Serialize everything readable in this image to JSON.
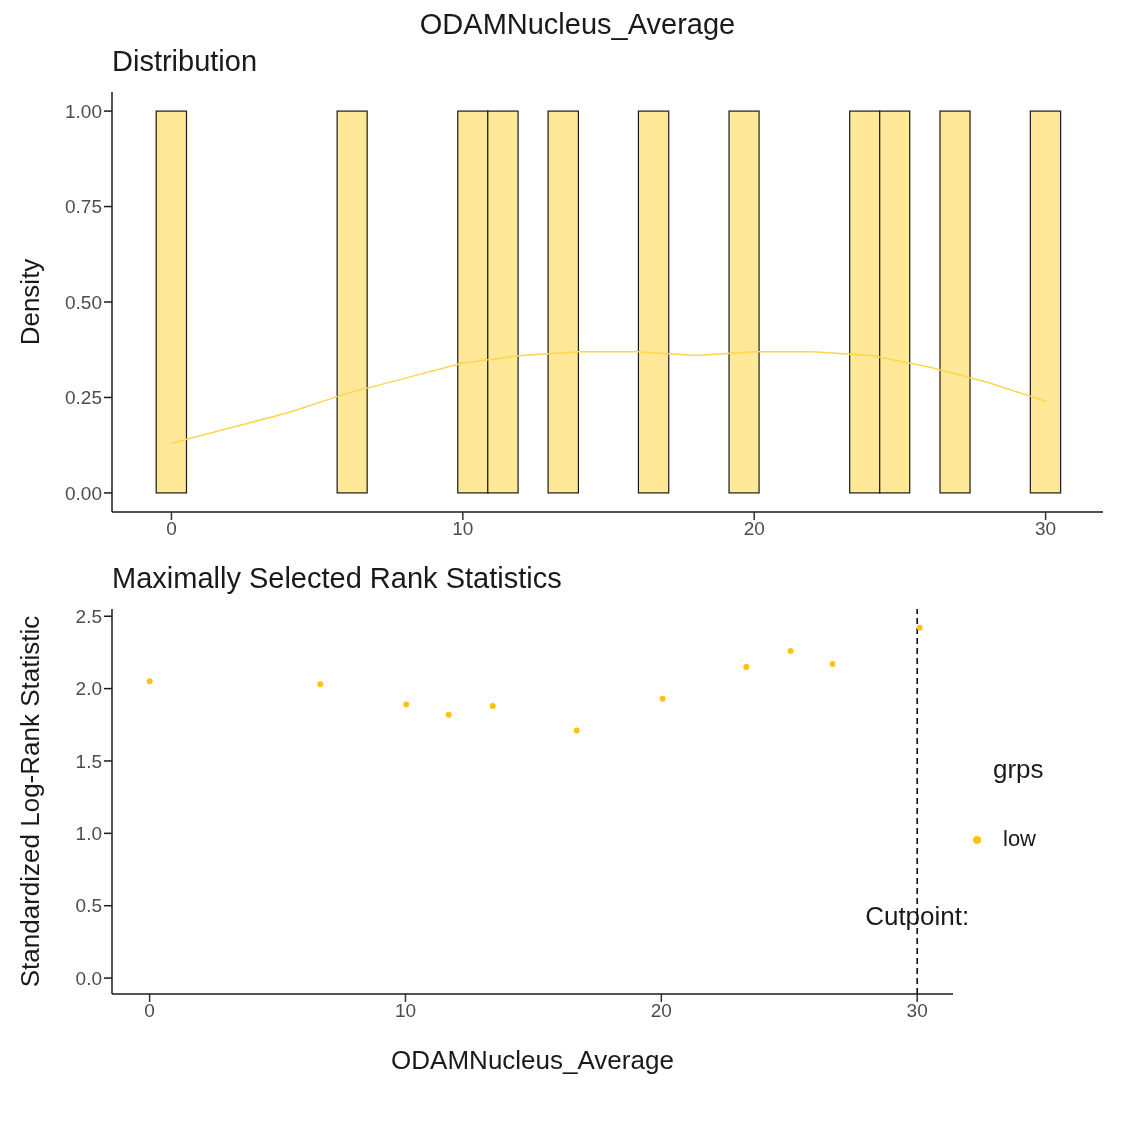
{
  "chart_data": [
    {
      "type": "histogram",
      "title": "ODAMNucleus_Average",
      "subtitle": "Distribution",
      "ylabel": "Density",
      "bins": [
        -0.52,
        0.52,
        1.55,
        2.59,
        3.62,
        4.66,
        5.69,
        6.72,
        7.76,
        8.79,
        9.83,
        10.86,
        11.9,
        12.93,
        13.97,
        15.0,
        16.03,
        17.07,
        18.1,
        19.14,
        20.17,
        21.21,
        22.24,
        23.28,
        24.31,
        25.34,
        26.38,
        27.41,
        28.45,
        29.48,
        30.52
      ],
      "series": [
        {
          "type": "histogram",
          "color": "#ffe999",
          "values": [
            1,
            0,
            0,
            0,
            0,
            0,
            1,
            0,
            0,
            0,
            1,
            1,
            0,
            1,
            0,
            0,
            1,
            0,
            0,
            1,
            0,
            0,
            0,
            1,
            1,
            0,
            1,
            0,
            0,
            1
          ]
        },
        {
          "type": "line",
          "color": "#ffd54f",
          "x": [
            0,
            2,
            4,
            6,
            8,
            10,
            12,
            14,
            16,
            18,
            20,
            22,
            24,
            26,
            28,
            30
          ],
          "values": [
            0.13,
            0.17,
            0.21,
            0.26,
            0.3,
            0.34,
            0.36,
            0.37,
            0.37,
            0.36,
            0.37,
            0.37,
            0.36,
            0.33,
            0.29,
            0.24
          ]
        }
      ],
      "xlim": [
        -2.04,
        31.97
      ],
      "xticks": [
        0,
        10,
        20,
        30
      ],
      "ylim": [
        -0.05,
        1.05
      ],
      "yticks": [
        {
          "value": 0,
          "label": "0.00"
        },
        {
          "value": 0.25,
          "label": "0.25"
        },
        {
          "value": 0.5,
          "label": "0.50"
        },
        {
          "value": 0.75,
          "label": "0.75"
        },
        {
          "value": 1,
          "label": "1.00"
        }
      ],
      "grid": false,
      "legend": false
    },
    {
      "type": "scatter",
      "title": "Maximally Selected Rank Statistics",
      "xlabel": "ODAMNucleus_Average",
      "ylabel": "Standardized Log-Rank Statistic",
      "legend_title": "grps",
      "x": [
        0,
        6.67,
        10.03,
        11.69,
        13.41,
        16.69,
        20.05,
        23.32,
        25.05,
        26.69,
        30.1
      ],
      "series": [
        {
          "name": "low",
          "color": "#ffc20e",
          "values": [
            2.05,
            2.03,
            1.89,
            1.82,
            1.88,
            1.71,
            1.93,
            2.15,
            2.26,
            2.17,
            2.42
          ]
        }
      ],
      "xlim": [
        -1.47,
        31.4
      ],
      "xticks": [
        0,
        10,
        20,
        30
      ],
      "ylim": [
        -0.11,
        2.55
      ],
      "yticks": [
        {
          "value": 0,
          "label": "0.0"
        },
        {
          "value": 0.5,
          "label": "0.5"
        },
        {
          "value": 1,
          "label": "1.0"
        },
        {
          "value": 1.5,
          "label": "1.5"
        },
        {
          "value": 2,
          "label": "2.0"
        },
        {
          "value": 2.5,
          "label": "2.5"
        }
      ],
      "ref_lines": [
        {
          "axis": "x",
          "value": 30,
          "label": "Cutpoint:",
          "line_style": "dashed",
          "color": "#000000"
        }
      ],
      "marker": "circle",
      "grid": false,
      "legend": "right"
    }
  ]
}
